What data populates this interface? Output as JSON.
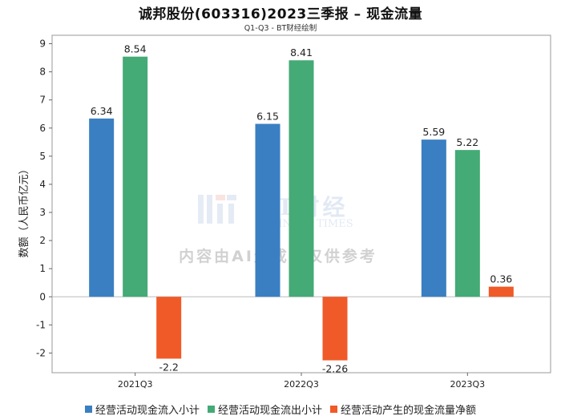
{
  "chart_data": {
    "type": "bar",
    "title": "诚邦股份(603316)2023三季报 – 现金流量",
    "subtitle": "Q1-Q3 - BT财经绘制",
    "ylabel": "数额（人民币亿元）",
    "xlabel": "",
    "ylim": [
      -2.7,
      9.3
    ],
    "yticks": [
      -2,
      -1,
      0,
      1,
      2,
      3,
      4,
      5,
      6,
      7,
      8,
      9
    ],
    "categories": [
      "2021Q3",
      "2022Q3",
      "2023Q3"
    ],
    "series": [
      {
        "name": "经营活动现金流入小计",
        "color": "#3a7fc1",
        "values": [
          6.34,
          6.15,
          5.59
        ]
      },
      {
        "name": "经营活动现金流出小计",
        "color": "#44aa76",
        "values": [
          8.54,
          8.41,
          5.22
        ]
      },
      {
        "name": "经营活动产生的现金流量净额",
        "color": "#f05a28",
        "values": [
          -2.2,
          -2.26,
          0.36
        ]
      }
    ],
    "legend_position": "bottom",
    "grid": false
  },
  "watermark": {
    "brand": "BT财经",
    "brand_sub": "BUSINESS TIMES",
    "notice": "内容由AI生成，仅供参考"
  }
}
